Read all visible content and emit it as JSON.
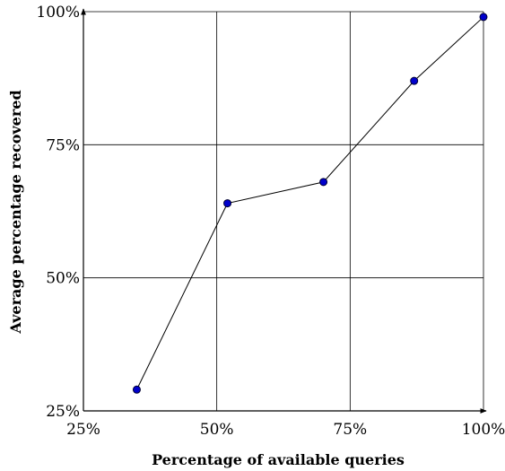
{
  "chart_data": {
    "type": "line",
    "title": "",
    "xlabel": "Percentage of available queries",
    "ylabel": "Average percentage recovered",
    "xlim": [
      25,
      100
    ],
    "ylim": [
      25,
      100
    ],
    "grid": true,
    "x_ticks": [
      {
        "value": 25,
        "label": "25%"
      },
      {
        "value": 50,
        "label": "50%"
      },
      {
        "value": 75,
        "label": "75%"
      },
      {
        "value": 100,
        "label": "100%"
      }
    ],
    "y_ticks": [
      {
        "value": 25,
        "label": "25%"
      },
      {
        "value": 50,
        "label": "50%"
      },
      {
        "value": 75,
        "label": "75%"
      },
      {
        "value": 100,
        "label": "100%"
      }
    ],
    "series": [
      {
        "x": [
          35,
          52,
          70,
          87,
          100
        ],
        "y": [
          29,
          64,
          68,
          87,
          99
        ],
        "line_color": "#000000",
        "marker_color": "#0000cc",
        "marker_edge": "#000033"
      }
    ]
  }
}
